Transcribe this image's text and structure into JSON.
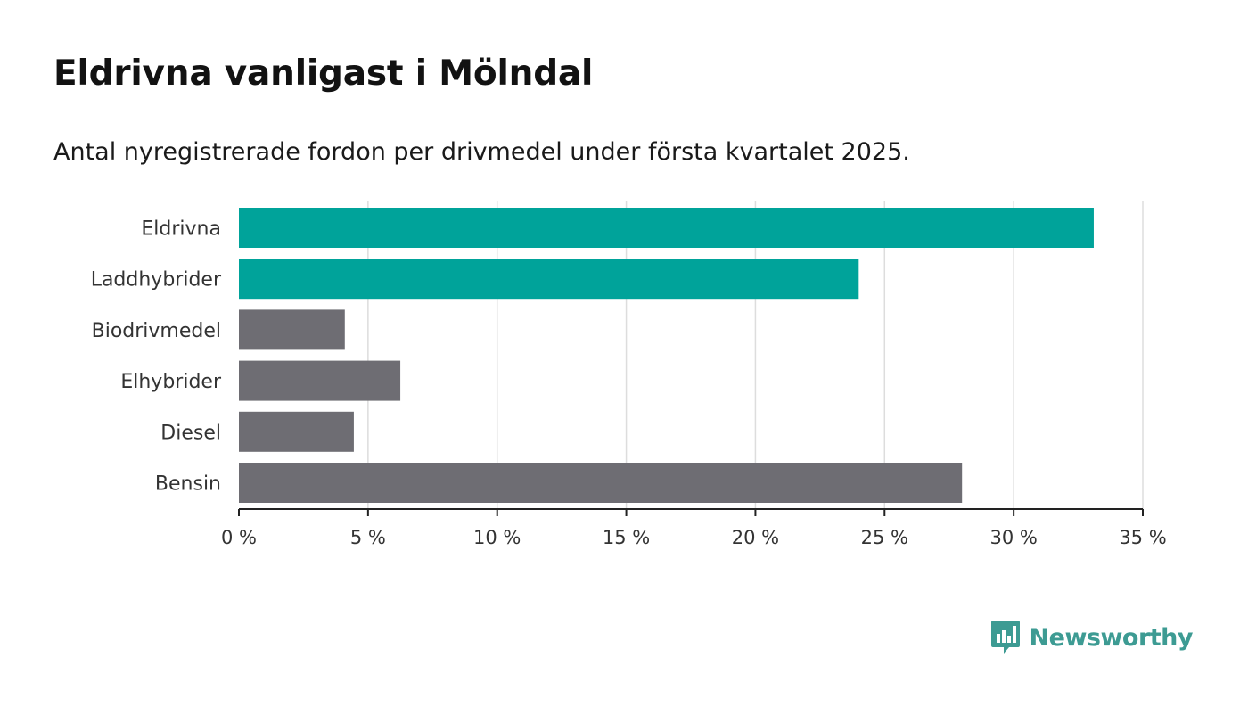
{
  "header": {
    "title": "Eldrivna vanligast i Mölndal",
    "subtitle": "Antal nyregistrerade fordon per drivmedel under första kvartalet 2025."
  },
  "brand": {
    "name": "Newsworthy",
    "color": "#3d9b93"
  },
  "colors": {
    "highlight": "#00a39a",
    "default": "#6e6d73",
    "grid": "#dddddd",
    "axis": "#222222"
  },
  "chart_data": {
    "type": "bar",
    "orientation": "horizontal",
    "categories": [
      "Eldrivna",
      "Laddhybrider",
      "Biodrivmedel",
      "Elhybrider",
      "Diesel",
      "Bensin"
    ],
    "values": [
      33.1,
      24.0,
      4.1,
      6.25,
      4.45,
      28.0
    ],
    "highlighted": [
      true,
      true,
      false,
      false,
      false,
      false
    ],
    "xlim": [
      0,
      35
    ],
    "xticks": [
      0,
      5,
      10,
      15,
      20,
      25,
      30,
      35
    ],
    "tick_suffix": " %",
    "grid": true
  }
}
